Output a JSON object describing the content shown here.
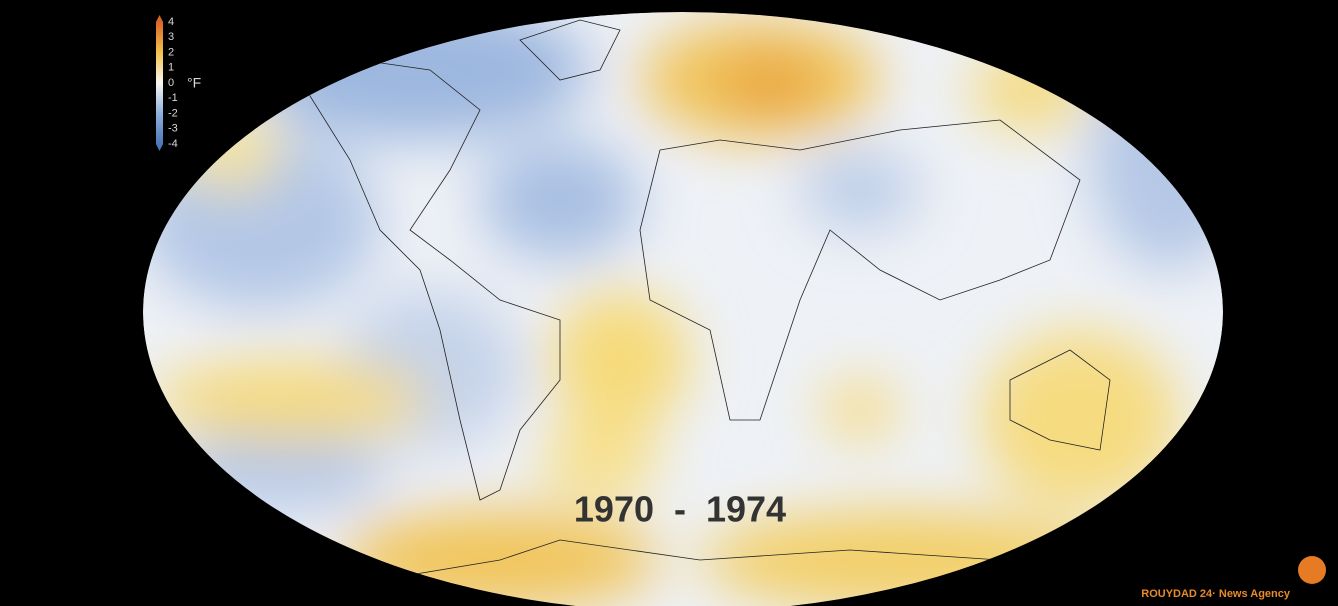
{
  "legend": {
    "ticks": [
      4,
      3,
      2,
      1,
      0,
      -1,
      -2,
      -3,
      -4
    ],
    "unit": "°F"
  },
  "caption": "1970  -  1974",
  "watermark": "ROUYDAD 24· News Agency"
}
